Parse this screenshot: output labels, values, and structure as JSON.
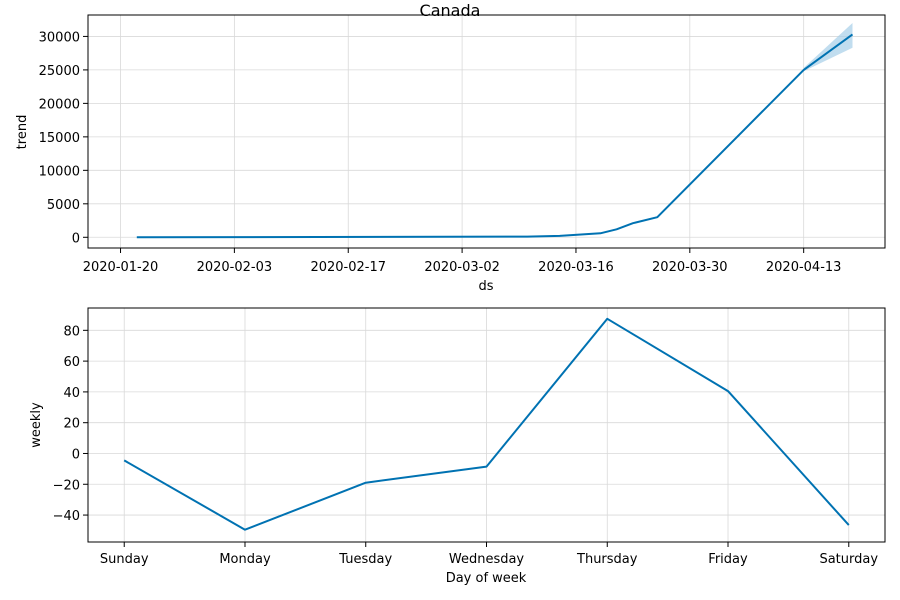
{
  "title": "Canada",
  "colors": {
    "line": "#0072b2",
    "band": "#a6cfe8"
  },
  "chart_data": [
    {
      "type": "line",
      "xlabel": "ds",
      "ylabel": "trend",
      "x_tick_labels": [
        "2020-01-20",
        "2020-02-03",
        "2020-02-17",
        "2020-03-02",
        "2020-03-16",
        "2020-03-30",
        "2020-04-13"
      ],
      "y_ticks": [
        0,
        5000,
        10000,
        15000,
        20000,
        25000,
        30000
      ],
      "xlim": [
        "2020-01-16",
        "2020-04-23"
      ],
      "ylim": [
        -1600,
        33200
      ],
      "grid": true,
      "series": [
        {
          "x": [
            "2020-01-22",
            "2020-03-10",
            "2020-03-14",
            "2020-03-19",
            "2020-03-21",
            "2020-03-23",
            "2020-03-26",
            "2020-04-13",
            "2020-04-19"
          ],
          "y": [
            0,
            100,
            200,
            600,
            1200,
            2100,
            3000,
            25000,
            30300
          ]
        }
      ],
      "uncertainty_band": {
        "x": [
          "2020-04-13",
          "2020-04-19"
        ],
        "lower": [
          24800,
          28300
        ],
        "upper": [
          25300,
          32000
        ]
      }
    },
    {
      "type": "line",
      "xlabel": "Day of week",
      "ylabel": "weekly",
      "categories": [
        "Sunday",
        "Monday",
        "Tuesday",
        "Wednesday",
        "Thursday",
        "Friday",
        "Saturday"
      ],
      "y_ticks": [
        -40,
        -20,
        0,
        20,
        40,
        60,
        80
      ],
      "ylim": [
        -57.5,
        94.5
      ],
      "grid": true,
      "series": [
        {
          "values": [
            -4.5,
            -49.5,
            -19,
            -8.5,
            87.5,
            40.5,
            -46.5
          ]
        }
      ]
    }
  ]
}
